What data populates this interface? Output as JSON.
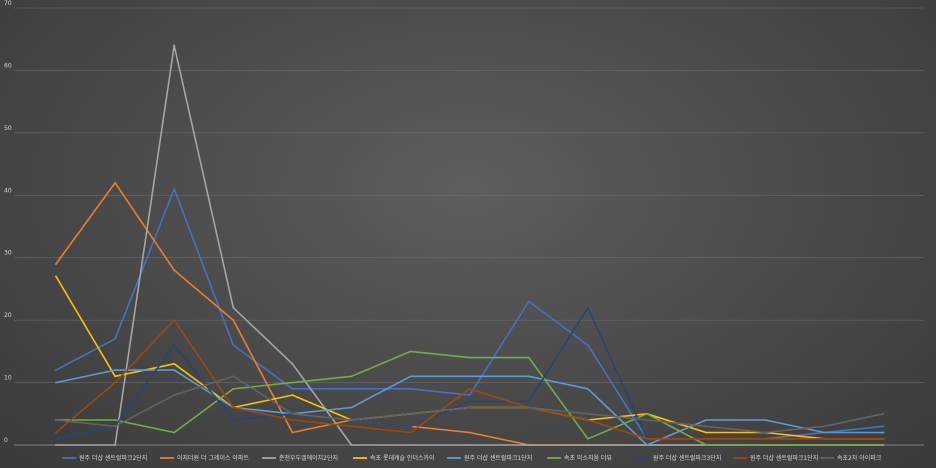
{
  "chart_data": {
    "type": "line",
    "title": "",
    "xlabel": "",
    "ylabel": "",
    "ylim": [
      0,
      70
    ],
    "yticks": [
      0,
      10,
      20,
      30,
      40,
      50,
      60,
      70
    ],
    "grid": true,
    "legend_position": "bottom",
    "x": [
      1,
      2,
      3,
      4,
      5,
      6,
      7,
      8,
      9,
      10,
      11,
      12,
      13,
      14,
      15
    ],
    "series": [
      {
        "name": "원주 더샵 센트럴파크2단지",
        "color": "#4472c4",
        "values": [
          12,
          17,
          41,
          16,
          9,
          9,
          9,
          8,
          23,
          16,
          1,
          1,
          1,
          2,
          3
        ]
      },
      {
        "name": "이지더원 더 그레이스 아파트",
        "color": "#ed7d31",
        "values": [
          29,
          42,
          28,
          20,
          2,
          4,
          3,
          2,
          0,
          0,
          0,
          0,
          0,
          0,
          0
        ]
      },
      {
        "name": "춘천우두엘에이치2단지",
        "color": "#a5a5a5",
        "values": [
          0,
          0,
          64,
          22,
          13,
          0,
          0,
          0,
          0,
          0,
          0,
          0,
          0,
          0,
          0
        ]
      },
      {
        "name": "속초 롯데캐슬 인더스카이",
        "color": "#ffc000",
        "values": [
          27,
          11,
          13,
          6,
          8,
          4,
          5,
          6,
          6,
          4,
          5,
          2,
          2,
          1,
          1
        ]
      },
      {
        "name": "원주 더샵 센트럴파크1단지",
        "color": "#5b9bd5",
        "values": [
          10,
          12,
          12,
          6,
          5,
          6,
          11,
          11,
          11,
          9,
          0,
          4,
          4,
          2,
          2
        ]
      },
      {
        "name": "속초 미소지움 더뷰",
        "color": "#70ad47",
        "values": [
          4,
          4,
          2,
          9,
          10,
          11,
          15,
          14,
          14,
          1,
          5,
          0,
          0,
          0,
          0
        ]
      },
      {
        "name": "원주 더샵 센트럴파크3단지",
        "color": "#264478",
        "values": [
          1,
          3,
          16,
          4,
          5,
          4,
          3,
          7,
          7,
          22,
          1,
          1,
          1,
          1,
          1
        ]
      },
      {
        "name": "원주 더샵 센트럴파크1단지",
        "color": "#9e480e",
        "values": [
          2,
          10,
          20,
          6,
          4,
          3,
          2,
          9,
          6,
          4,
          1,
          1,
          1,
          1,
          1
        ]
      },
      {
        "name": "속초2차 아이파크",
        "color": "#636363",
        "values": [
          4,
          3,
          8,
          11,
          5,
          4,
          5,
          6,
          6,
          5,
          4,
          3,
          2,
          3,
          5
        ]
      }
    ]
  }
}
